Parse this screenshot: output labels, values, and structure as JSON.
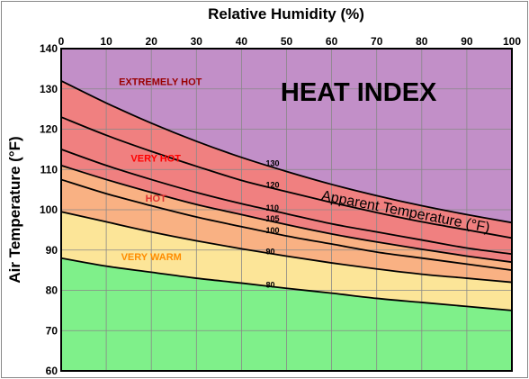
{
  "chart_data": {
    "type": "line",
    "title": "HEAT INDEX",
    "xlabel": "Relative Humidity (%)",
    "ylabel": "Air Temperature (°F)",
    "annotation": "Apparent Temperature (°F)",
    "xlim": [
      0,
      100
    ],
    "ylim": [
      60,
      140
    ],
    "x_ticks": [
      "0",
      "10",
      "20",
      "30",
      "40",
      "50",
      "60",
      "70",
      "80",
      "90",
      "100"
    ],
    "y_ticks": [
      "60",
      "70",
      "80",
      "90",
      "100",
      "110",
      "120",
      "130",
      "140"
    ],
    "grid": true,
    "x": [
      0,
      10,
      20,
      30,
      40,
      50,
      60,
      70,
      80,
      90,
      100
    ],
    "series": [
      {
        "name": "80",
        "values": [
          88,
          86,
          84.5,
          83,
          81.8,
          80.5,
          79.3,
          78,
          77,
          76,
          75
        ]
      },
      {
        "name": "90",
        "values": [
          99.5,
          97,
          94.5,
          92.3,
          90.3,
          88.5,
          86.8,
          85.3,
          84,
          83,
          82
        ]
      },
      {
        "name": "100",
        "values": [
          107.5,
          104,
          101,
          98.2,
          95.8,
          93.5,
          91.5,
          89.5,
          88,
          86.5,
          85
        ]
      },
      {
        "name": "105",
        "values": [
          111,
          107.5,
          104.3,
          101.3,
          98.8,
          96.3,
          94,
          92,
          90.2,
          88.5,
          87
        ]
      },
      {
        "name": "110",
        "values": [
          115,
          111,
          107.5,
          104.3,
          101.5,
          99,
          96.5,
          94.5,
          92.5,
          90.5,
          89
        ]
      },
      {
        "name": "120",
        "values": [
          123,
          118.5,
          114.5,
          110.8,
          107.3,
          104.5,
          101.8,
          99.3,
          97,
          95,
          93
        ]
      },
      {
        "name": "130",
        "values": [
          132,
          126.5,
          121.5,
          117,
          113,
          109.5,
          106.3,
          103.5,
          101,
          98.8,
          96.8
        ]
      }
    ],
    "zones": [
      {
        "label": "EXTREMELY HOT",
        "color": "#c28fc8",
        "text_color": "#990000",
        "label_x": 22,
        "label_y": 131
      },
      {
        "label": "VERY HOT",
        "color": "#f08080",
        "text_color": "#ff0000",
        "label_x": 21,
        "label_y": 112
      },
      {
        "label": "HOT",
        "color": "#f9b183",
        "text_color": "#e03030",
        "label_x": 21,
        "label_y": 102
      },
      {
        "label": "VERY WARM",
        "color": "#fce598",
        "text_color": "#ff8c00",
        "label_x": 20,
        "label_y": 87.5
      },
      {
        "label": "",
        "color": "#7ff08a",
        "text_color": "#000000",
        "label_x": 0,
        "label_y": 0
      }
    ],
    "colors": {
      "border": "#000000",
      "grid": "#888888",
      "curve": "#000000",
      "frame": "#888888"
    }
  }
}
